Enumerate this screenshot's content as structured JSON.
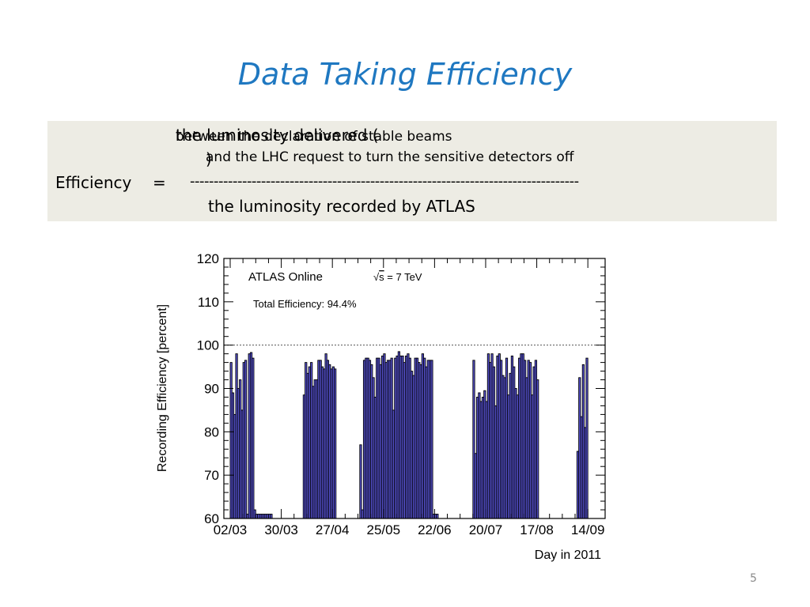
{
  "slide": {
    "title": "Data Taking Efficiency",
    "page_number": "5",
    "title_color": "#1f78c1"
  },
  "formula": {
    "numerator_main": "the luminosity delivered (",
    "numerator_paren1": "between the declaration of stable beams",
    "numerator_paren2": "and the LHC request  to turn the sensitive detectors off",
    "numerator_close": ")",
    "lhs": "Efficiency",
    "equals": "=",
    "fraction_bar": "----------------------------------------------------------------------------------",
    "denominator": "the luminosity recorded by ATLAS"
  },
  "chart_data": {
    "type": "bar",
    "title": "ATLAS Online",
    "subtitle_prefix": "√",
    "subtitle_s": "s",
    "subtitle_rest": " = 7 TeV",
    "annotation": "Total Efficiency: 94.4%",
    "xlabel": "Day in 2011",
    "ylabel": "Recording Efficiency [percent]",
    "ylim": [
      60,
      120
    ],
    "yticks": [
      60,
      70,
      80,
      90,
      100,
      110,
      120
    ],
    "xtick_labels": [
      "02/03",
      "30/03",
      "27/04",
      "25/05",
      "22/06",
      "20/07",
      "17/08",
      "14/09"
    ],
    "x_range_days": [
      0,
      202
    ],
    "reference_line": 100,
    "bar_color": "#5a55d9",
    "series": [
      {
        "x": [
          0,
          1,
          2,
          3,
          4,
          5,
          6,
          7,
          8,
          9,
          10,
          11,
          12,
          13,
          14,
          15,
          16,
          17,
          18,
          19,
          20,
          21,
          22,
          40,
          41,
          42,
          43,
          44,
          45,
          46,
          47,
          48,
          49,
          50,
          51,
          52,
          53,
          54,
          55,
          56,
          57,
          71,
          72,
          73,
          74,
          75,
          76,
          77,
          78,
          79,
          80,
          81,
          82,
          83,
          84,
          85,
          86,
          87,
          88,
          89,
          90,
          91,
          92,
          93,
          94,
          95,
          96,
          97,
          98,
          99,
          100,
          101,
          102,
          103,
          104,
          105,
          106,
          107,
          108,
          109,
          110,
          111,
          112,
          113,
          133,
          134,
          135,
          136,
          137,
          138,
          139,
          140,
          141,
          142,
          143,
          144,
          145,
          146,
          147,
          148,
          149,
          150,
          151,
          152,
          153,
          154,
          155,
          156,
          157,
          158,
          159,
          160,
          161,
          162,
          163,
          164,
          165,
          166,
          167,
          168,
          190,
          191,
          192,
          193,
          194,
          195
        ],
        "values": [
          96,
          89,
          84,
          98,
          90,
          92,
          85,
          96,
          96.5,
          61,
          98,
          98.3,
          97,
          62,
          61,
          61,
          61,
          61,
          61,
          61,
          61,
          61,
          61,
          88.5,
          96,
          93.5,
          95,
          96,
          90.5,
          92,
          92,
          96.5,
          96.5,
          95,
          94.5,
          98,
          96.5,
          95.5,
          94.5,
          95,
          94.5,
          77,
          62,
          96.5,
          97,
          97,
          96.5,
          95.5,
          92.5,
          88,
          97,
          97,
          95.5,
          97.5,
          98,
          96,
          96.5,
          96.5,
          97,
          85,
          97,
          97.5,
          98.5,
          97.5,
          97.5,
          96,
          97.5,
          98,
          97,
          94,
          93,
          97,
          97,
          96,
          95.5,
          98,
          97,
          95,
          96.5,
          96.5,
          96.5,
          61,
          61,
          61,
          96.5,
          75,
          88,
          89,
          87,
          88,
          89.5,
          87,
          98,
          96,
          98,
          95,
          86,
          97.5,
          98,
          96.5,
          93,
          92.5,
          97,
          88.5,
          93.5,
          97.5,
          95,
          90,
          88.5,
          97,
          98,
          98,
          96.5,
          92.5,
          96.5,
          96,
          88.5,
          95,
          96.5,
          92,
          75.5,
          92.5,
          83.5,
          95.5,
          81,
          97
        ]
      }
    ]
  }
}
